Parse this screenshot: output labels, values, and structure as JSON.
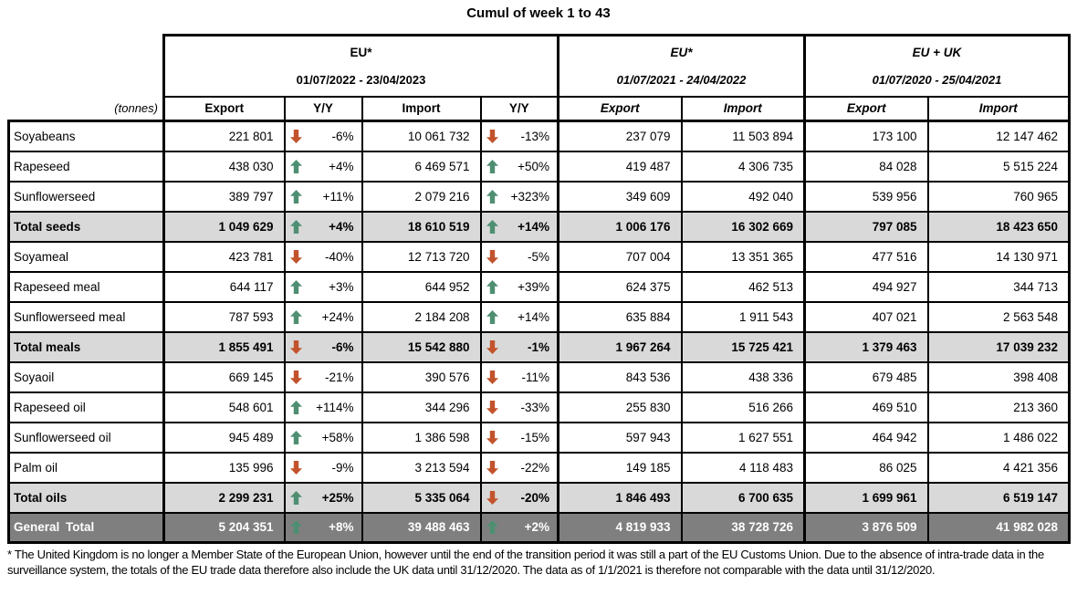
{
  "title": "Cumul of week 1 to 43",
  "units_label": "(tonnes)",
  "colors": {
    "up_arrow": "#4e8f72",
    "down_arrow": "#c2532c",
    "subtotal_row_bg": "#d9d9d9",
    "grand_total_row_bg": "#7f7f7f",
    "grand_total_text": "#ffffff",
    "border": "#000000"
  },
  "chart_data": {
    "type": "table",
    "title": "Cumul of week 1 to 43",
    "column_groups": [
      {
        "title": "EU*",
        "period": "01/07/2022 - 23/04/2023",
        "columns": [
          "Export",
          "Y/Y",
          "Import",
          "Y/Y"
        ]
      },
      {
        "title": "EU*",
        "period": "01/07/2021 - 24/04/2022",
        "columns": [
          "Export",
          "Import"
        ]
      },
      {
        "title": "EU + UK",
        "period": "01/07/2020 - 25/04/2021",
        "columns": [
          "Export",
          "Import"
        ]
      }
    ],
    "rows": [
      {
        "label": "Soyabeans",
        "kind": "data",
        "cur_export": "221 801",
        "cur_export_trend": "down",
        "cur_export_yy": "-6%",
        "cur_import": "10 061 732",
        "cur_import_trend": "down",
        "cur_import_yy": "-13%",
        "prev_export": "237 079",
        "prev_import": "11 503 894",
        "euuk_export": "173 100",
        "euuk_import": "12 147 462"
      },
      {
        "label": "Rapeseed",
        "kind": "data",
        "cur_export": "438 030",
        "cur_export_trend": "up",
        "cur_export_yy": "+4%",
        "cur_import": "6 469 571",
        "cur_import_trend": "up",
        "cur_import_yy": "+50%",
        "prev_export": "419 487",
        "prev_import": "4 306 735",
        "euuk_export": "84 028",
        "euuk_import": "5 515 224"
      },
      {
        "label": "Sunflowerseed",
        "kind": "data",
        "cur_export": "389 797",
        "cur_export_trend": "up",
        "cur_export_yy": "+11%",
        "cur_import": "2 079 216",
        "cur_import_trend": "up",
        "cur_import_yy": "+323%",
        "prev_export": "349 609",
        "prev_import": "492 040",
        "euuk_export": "539 956",
        "euuk_import": "760 965"
      },
      {
        "label": "Total seeds",
        "kind": "subtotal",
        "cur_export": "1 049 629",
        "cur_export_trend": "up",
        "cur_export_yy": "+4%",
        "cur_import": "18 610 519",
        "cur_import_trend": "up",
        "cur_import_yy": "+14%",
        "prev_export": "1 006 176",
        "prev_import": "16 302 669",
        "euuk_export": "797 085",
        "euuk_import": "18 423 650"
      },
      {
        "label": "Soyameal",
        "kind": "data",
        "cur_export": "423 781",
        "cur_export_trend": "down",
        "cur_export_yy": "-40%",
        "cur_import": "12 713 720",
        "cur_import_trend": "down",
        "cur_import_yy": "-5%",
        "prev_export": "707 004",
        "prev_import": "13 351 365",
        "euuk_export": "477 516",
        "euuk_import": "14 130 971"
      },
      {
        "label": "Rapeseed meal",
        "kind": "data",
        "cur_export": "644 117",
        "cur_export_trend": "up",
        "cur_export_yy": "+3%",
        "cur_import": "644 952",
        "cur_import_trend": "up",
        "cur_import_yy": "+39%",
        "prev_export": "624 375",
        "prev_import": "462 513",
        "euuk_export": "494 927",
        "euuk_import": "344 713"
      },
      {
        "label": "Sunflowerseed meal",
        "kind": "data",
        "cur_export": "787 593",
        "cur_export_trend": "up",
        "cur_export_yy": "+24%",
        "cur_import": "2 184 208",
        "cur_import_trend": "up",
        "cur_import_yy": "+14%",
        "prev_export": "635 884",
        "prev_import": "1 911 543",
        "euuk_export": "407 021",
        "euuk_import": "2 563 548"
      },
      {
        "label": "Total meals",
        "kind": "subtotal",
        "cur_export": "1 855 491",
        "cur_export_trend": "down",
        "cur_export_yy": "-6%",
        "cur_import": "15 542 880",
        "cur_import_trend": "down",
        "cur_import_yy": "-1%",
        "prev_export": "1 967 264",
        "prev_import": "15 725 421",
        "euuk_export": "1 379 463",
        "euuk_import": "17 039 232"
      },
      {
        "label": "Soyaoil",
        "kind": "data",
        "cur_export": "669 145",
        "cur_export_trend": "down",
        "cur_export_yy": "-21%",
        "cur_import": "390 576",
        "cur_import_trend": "down",
        "cur_import_yy": "-11%",
        "prev_export": "843 536",
        "prev_import": "438 336",
        "euuk_export": "679 485",
        "euuk_import": "398 408"
      },
      {
        "label": "Rapeseed oil",
        "kind": "data",
        "cur_export": "548 601",
        "cur_export_trend": "up",
        "cur_export_yy": "+114%",
        "cur_import": "344 296",
        "cur_import_trend": "down",
        "cur_import_yy": "-33%",
        "prev_export": "255 830",
        "prev_import": "516 266",
        "euuk_export": "469 510",
        "euuk_import": "213 360"
      },
      {
        "label": "Sunflowerseed oil",
        "kind": "data",
        "cur_export": "945 489",
        "cur_export_trend": "up",
        "cur_export_yy": "+58%",
        "cur_import": "1 386 598",
        "cur_import_trend": "down",
        "cur_import_yy": "-15%",
        "prev_export": "597 943",
        "prev_import": "1 627 551",
        "euuk_export": "464 942",
        "euuk_import": "1 486 022"
      },
      {
        "label": "Palm oil",
        "kind": "data",
        "cur_export": "135 996",
        "cur_export_trend": "down",
        "cur_export_yy": "-9%",
        "cur_import": "3 213 594",
        "cur_import_trend": "down",
        "cur_import_yy": "-22%",
        "prev_export": "149 185",
        "prev_import": "4 118 483",
        "euuk_export": "86 025",
        "euuk_import": "4 421 356"
      },
      {
        "label": "Total oils",
        "kind": "subtotal",
        "cur_export": "2 299 231",
        "cur_export_trend": "up",
        "cur_export_yy": "+25%",
        "cur_import": "5 335 064",
        "cur_import_trend": "down",
        "cur_import_yy": "-20%",
        "prev_export": "1 846 493",
        "prev_import": "6 700 635",
        "euuk_export": "1 699 961",
        "euuk_import": "6 519 147"
      },
      {
        "label": "General Total",
        "kind": "grand",
        "cur_export": "5 204 351",
        "cur_export_trend": "up",
        "cur_export_yy": "+8%",
        "cur_import": "39 488 463",
        "cur_import_trend": "up",
        "cur_import_yy": "+2%",
        "prev_export": "4 819 933",
        "prev_import": "38 728 726",
        "euuk_export": "3 876 509",
        "euuk_import": "41 982 028"
      }
    ]
  },
  "footnote": "* The United Kingdom is no longer a Member State of the European Union, however until the end of the transition period it was still a part of the EU Customs Union. Due to the absence of intra-trade data in the surveillance system, the totals of the EU trade data  therefore also include the UK data until 31/12/2020. The data as of 1/1/2021 is therefore not comparable with the data until 31/12/2020."
}
